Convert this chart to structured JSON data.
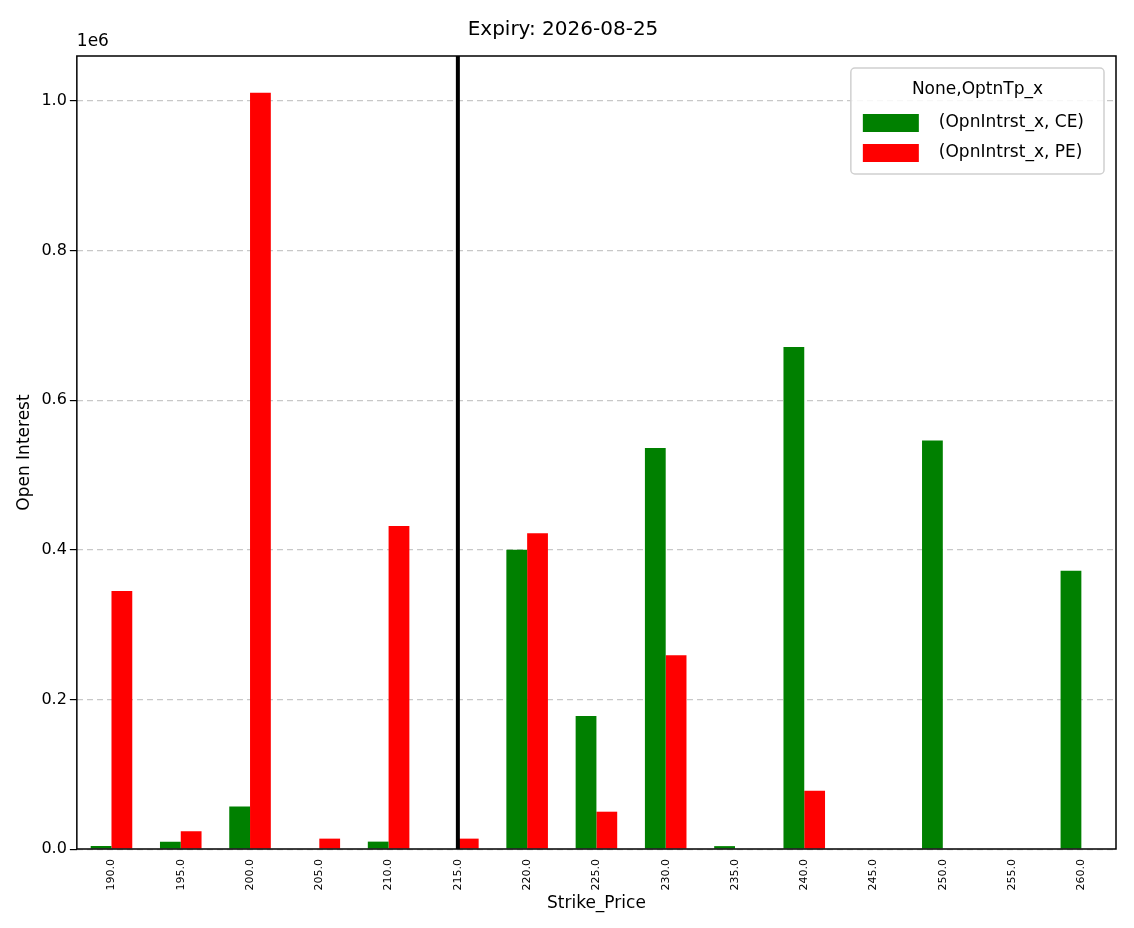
{
  "chart_data": {
    "type": "bar",
    "title": "Expiry: 2026-08-25",
    "xlabel": "Strike_Price",
    "ylabel": "Open Interest",
    "legend_title": "None,OptnTp_x",
    "annotations": [
      "1e6"
    ],
    "categories": [
      "190.0",
      "195.0",
      "200.0",
      "205.0",
      "210.0",
      "215.0",
      "220.0",
      "225.0",
      "230.0",
      "235.0",
      "240.0",
      "245.0",
      "250.0",
      "255.0",
      "260.0"
    ],
    "series": [
      {
        "name": "(OpnIntrst_x, CE)",
        "color": "#008000",
        "values": [
          0.004,
          0.01,
          0.057,
          null,
          0.01,
          null,
          0.4,
          0.178,
          0.536,
          0.004,
          0.671,
          null,
          0.546,
          null,
          0.372
        ]
      },
      {
        "name": "(OpnIntrst_x, PE)",
        "color": "#ff0000",
        "values": [
          0.345,
          0.024,
          1.011,
          0.014,
          0.432,
          0.014,
          0.422,
          0.05,
          0.259,
          null,
          0.078,
          null,
          null,
          null,
          null
        ]
      }
    ],
    "ylim": [
      0,
      1.06
    ],
    "yticks": [
      {
        "value": 0,
        "label": "0.0"
      },
      {
        "value": 0.2,
        "label": "0.2"
      },
      {
        "value": 0.4,
        "label": "0.4"
      },
      {
        "value": 0.6,
        "label": "0.6"
      },
      {
        "value": 0.8,
        "label": "0.8"
      },
      {
        "value": 1,
        "label": "1.0"
      }
    ],
    "grid": "y",
    "legend": "top right",
    "ref_lines": [
      {
        "axis": "x",
        "value": "215.0",
        "color": "#000000"
      }
    ]
  }
}
